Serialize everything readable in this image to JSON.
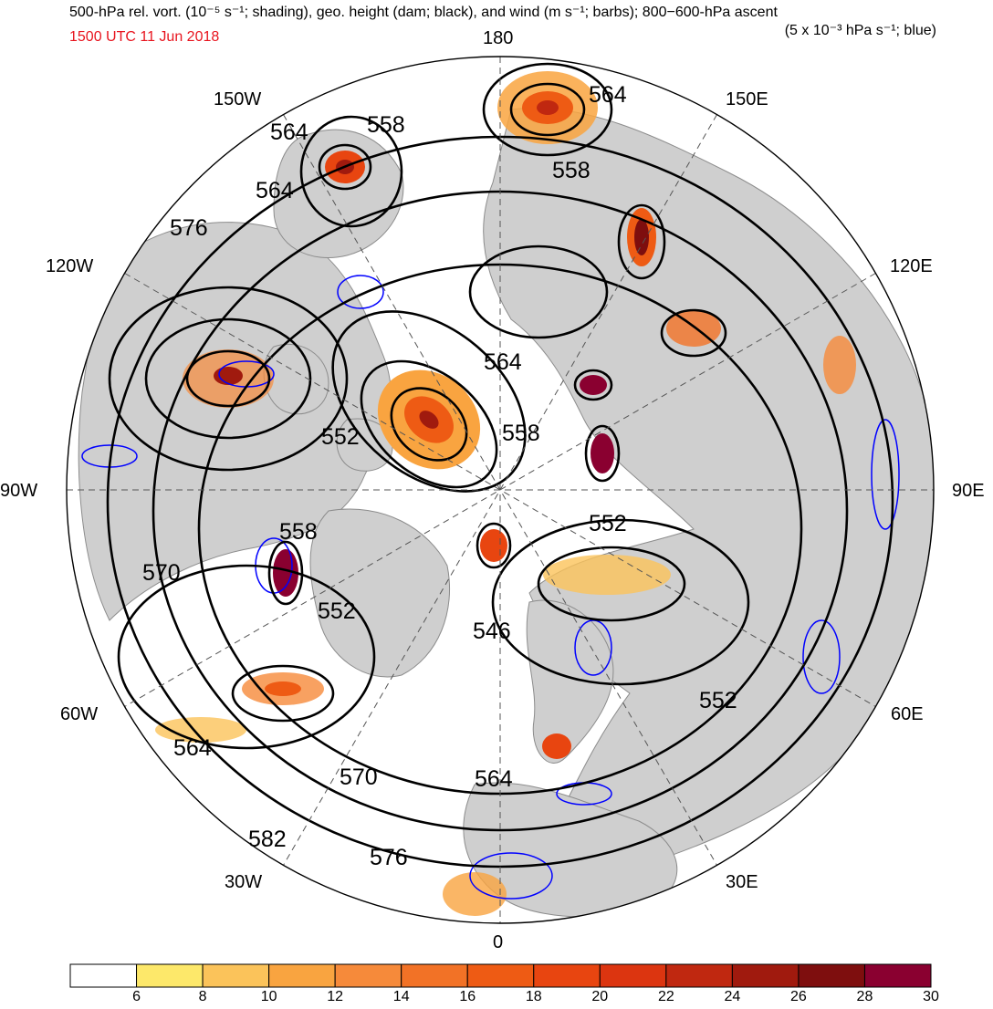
{
  "header": {
    "title_left": "500-hPa rel. vort. (10⁻⁵ s⁻¹; shading), geo. height (dam; black), and wind (m s⁻¹; barbs); 800−600-hPa ascent",
    "valid_time": "1500 UTC 11 Jun 2018",
    "title_right": "(5 x 10⁻³ hPa s⁻¹; blue)",
    "valid_time_color": "#e8141e"
  },
  "map": {
    "projection": "north-polar-stereographic",
    "center_longitude_at_bottom": "0",
    "longitude_labels": {
      "lon_180": "180",
      "lon_150w": "150W",
      "lon_150e": "150E",
      "lon_120w": "120W",
      "lon_120e": "120E",
      "lon_90w": "90W",
      "lon_90e": "90E",
      "lon_60w": "60W",
      "lon_60e": "60E",
      "lon_30w": "30W",
      "lon_30e": "30E",
      "lon_0": "0"
    },
    "land_color": "#cfcfcf",
    "ocean_color": "#ffffff",
    "height_contour_color": "#000000",
    "ascent_contour_color": "#0000ff",
    "height_contour_labels": {
      "c564_a": "564",
      "c558_a": "558",
      "c564_b": "564",
      "c564_c": "564",
      "c576_a": "576",
      "c558_b": "558",
      "c552_a": "552",
      "c564_d": "564",
      "c558_c": "558",
      "c558_d": "558",
      "c552_b": "552",
      "c570_a": "570",
      "c552_c": "552",
      "c546_a": "546",
      "c552_d": "552",
      "c564_e": "564",
      "c570_b": "570",
      "c564_f": "564",
      "c582_a": "582",
      "c576_b": "576"
    }
  },
  "colorbar": {
    "ticks": [
      "6",
      "8",
      "10",
      "12",
      "14",
      "16",
      "18",
      "20",
      "22",
      "24",
      "26",
      "28",
      "30"
    ],
    "colors": [
      "#ffffff",
      "#fde86a",
      "#fbc35a",
      "#f9a440",
      "#f68a3a",
      "#f27226",
      "#ee5b14",
      "#e84510",
      "#dc3510",
      "#c02810",
      "#a01a0e",
      "#7e0e0e",
      "#8a0030"
    ]
  }
}
